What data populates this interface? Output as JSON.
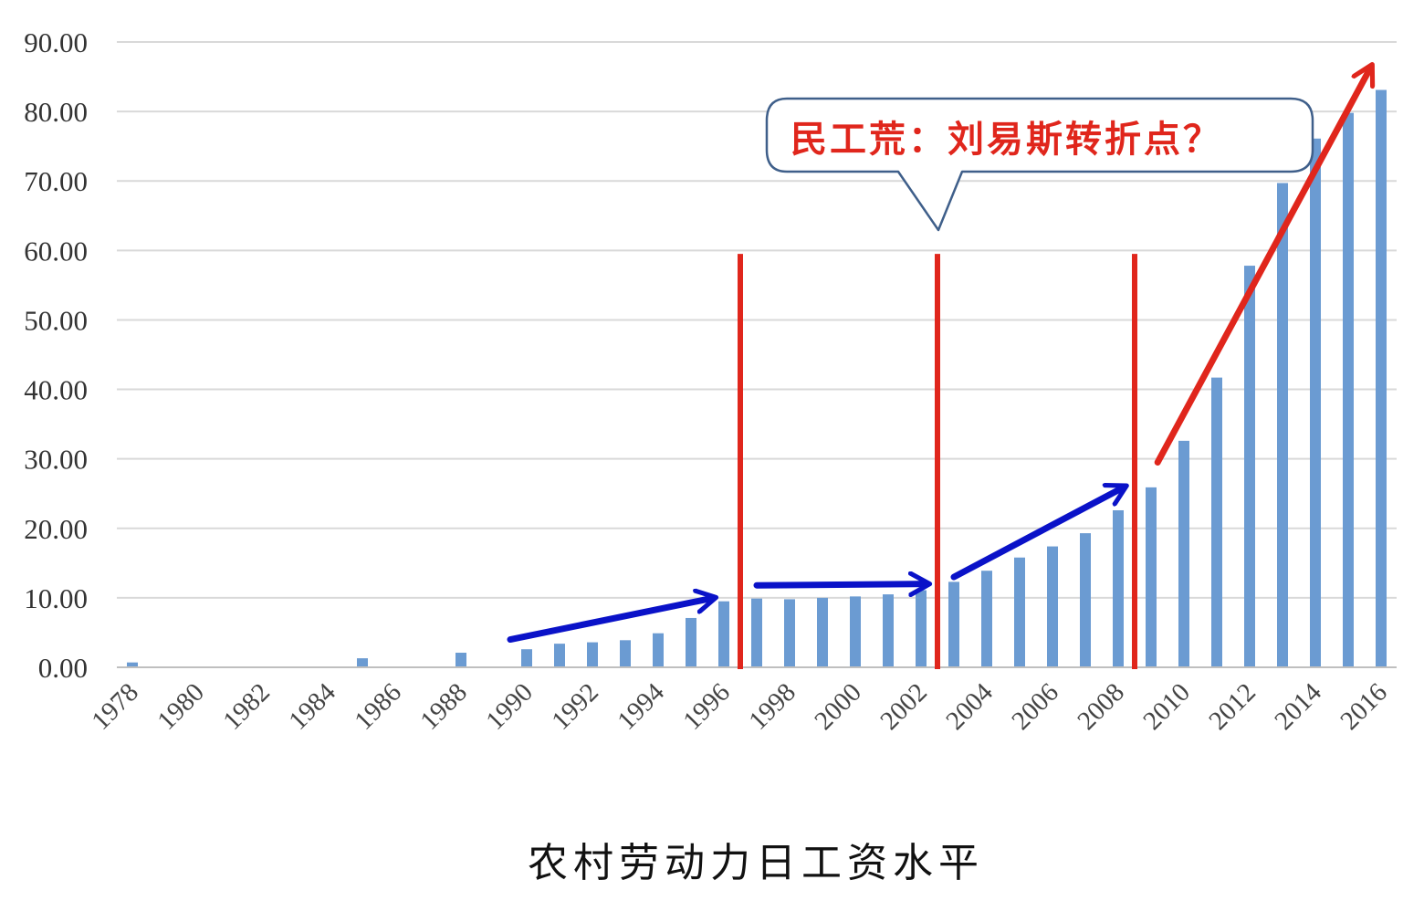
{
  "chart_data": {
    "type": "bar",
    "title": "农村劳动力日工资水平",
    "ylim": [
      0,
      90
    ],
    "yticks": [
      "0.00",
      "10.00",
      "20.00",
      "30.00",
      "40.00",
      "50.00",
      "60.00",
      "70.00",
      "80.00",
      "90.00"
    ],
    "xtick_labels": [
      "1978",
      "1980",
      "1982",
      "1984",
      "1986",
      "1988",
      "1990",
      "1992",
      "1994",
      "1996",
      "1998",
      "2000",
      "2002",
      "2004",
      "2006",
      "2008",
      "2010",
      "2012",
      "2014",
      "2016"
    ],
    "grid": true,
    "bar_color": "#6b9bd2",
    "categories": [
      1978,
      1985,
      1988,
      1990,
      1991,
      1992,
      1993,
      1994,
      1995,
      1996,
      1997,
      1998,
      1999,
      2000,
      2001,
      2002,
      2003,
      2004,
      2005,
      2006,
      2007,
      2008,
      2009,
      2010,
      2011,
      2012,
      2013,
      2014,
      2015,
      2016
    ],
    "values": [
      0.7,
      1.3,
      2.1,
      2.6,
      3.4,
      3.6,
      3.9,
      4.9,
      7.1,
      9.5,
      9.9,
      9.8,
      10.0,
      10.2,
      10.5,
      11.1,
      12.3,
      13.9,
      15.8,
      17.4,
      19.3,
      22.6,
      25.9,
      32.6,
      41.7,
      57.8,
      69.7,
      76.1,
      79.8,
      83.1
    ],
    "callout": {
      "text": "民工荒：刘易斯转折点？",
      "color": "#e0261c"
    },
    "annotations": {
      "red_lines_at_year": [
        1996.5,
        2002.5,
        2008.5
      ],
      "red_line_top_value": 59.5,
      "red_color": "#e0261c",
      "blue_color": "#0a12c8",
      "blue_arrows": [
        {
          "from": [
            1989.5,
            4.0
          ],
          "to": [
            1995.7,
            10.0
          ]
        },
        {
          "from": [
            1997.0,
            11.8
          ],
          "to": [
            2002.2,
            12.0
          ]
        },
        {
          "from": [
            2003.0,
            13.0
          ],
          "to": [
            2008.2,
            26.0
          ]
        }
      ],
      "red_arrow": {
        "from": [
          2009.2,
          29.5
        ],
        "to": [
          2015.7,
          86.5
        ]
      }
    }
  }
}
